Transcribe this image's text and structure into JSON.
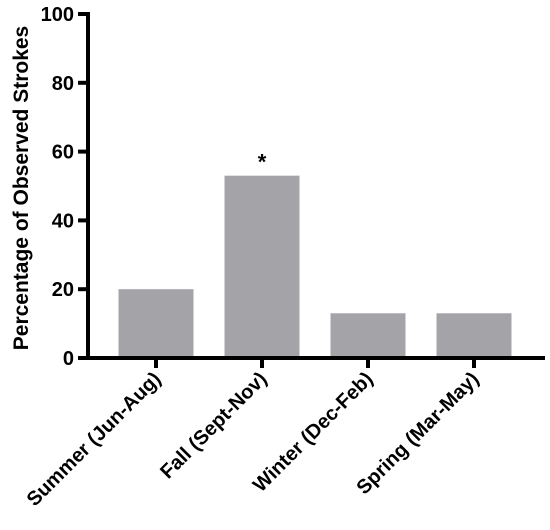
{
  "chart_data": {
    "type": "bar",
    "title": "",
    "xlabel": "",
    "ylabel": "Percentage of Observed Strokes",
    "categories": [
      "Summer (Jun-Aug)",
      "Fall (Sept-Nov)",
      "Winter (Dec-Feb)",
      "Spring (Mar-May)"
    ],
    "values": [
      20,
      53,
      13,
      13
    ],
    "ylim": [
      0,
      100
    ],
    "yticks": [
      0,
      20,
      40,
      60,
      80,
      100
    ],
    "grid": false,
    "legend": "none",
    "bar_color": "#a4a3a8",
    "annotations": [
      {
        "category": "Fall (Sept-Nov)",
        "text": "*"
      }
    ]
  }
}
